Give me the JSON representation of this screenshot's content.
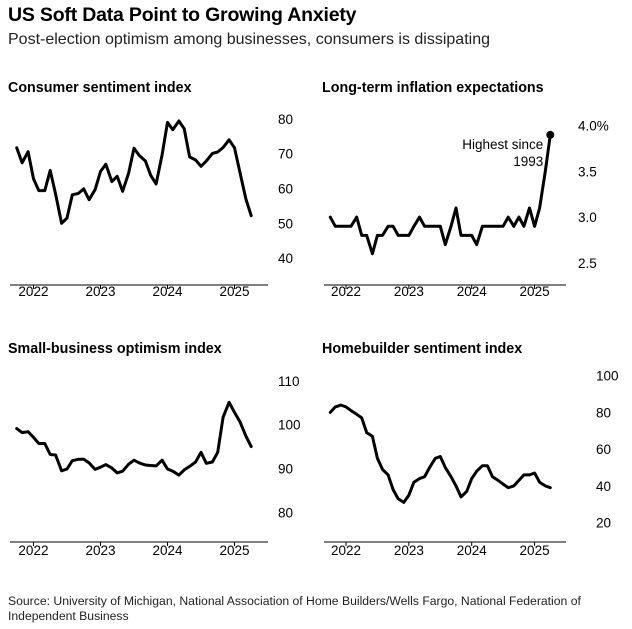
{
  "title": "US Soft Data Point to Growing Anxiety",
  "subtitle": "Post-election optimism among businesses, consumers is dissipating",
  "source": "Source: University of Michigan, National Association of Home Builders/Wells Fargo, National Federation of Independent Business",
  "colors": {
    "line": "#000000",
    "gridline": "#000000",
    "text": "#000000"
  },
  "chart_data": [
    {
      "type": "line",
      "title": "Consumer sentiment index",
      "x_ticks": [
        "2022",
        "2023",
        "2024",
        "2025"
      ],
      "x_tick_values": [
        2022,
        2023,
        2024,
        2025
      ],
      "xlim": [
        2021.65,
        2025.5
      ],
      "y_ticks": [
        40,
        50,
        60,
        70,
        80
      ],
      "y_tick_labels": [
        "40",
        "50",
        "60",
        "70",
        "80"
      ],
      "ylim": [
        36,
        82
      ],
      "series": [
        {
          "x": [
            2021.75,
            2021.83,
            2021.92,
            2022.0,
            2022.08,
            2022.17,
            2022.25,
            2022.33,
            2022.42,
            2022.5,
            2022.58,
            2022.67,
            2022.75,
            2022.83,
            2022.92,
            2023.0,
            2023.08,
            2023.17,
            2023.25,
            2023.33,
            2023.42,
            2023.5,
            2023.58,
            2023.67,
            2023.75,
            2023.83,
            2023.92,
            2024.0,
            2024.08,
            2024.17,
            2024.25,
            2024.33,
            2024.42,
            2024.5,
            2024.58,
            2024.67,
            2024.75,
            2024.83,
            2024.92,
            2025.0,
            2025.08,
            2025.17,
            2025.25
          ],
          "y": [
            71.7,
            67.4,
            70.6,
            62.8,
            59.4,
            59.4,
            65.2,
            58.4,
            50.0,
            51.5,
            58.2,
            58.6,
            59.9,
            56.8,
            59.7,
            64.9,
            67.0,
            62.0,
            63.5,
            59.2,
            64.4,
            71.6,
            69.5,
            67.9,
            63.8,
            61.3,
            69.7,
            79.0,
            76.9,
            79.4,
            77.2,
            69.1,
            68.2,
            66.4,
            67.9,
            70.1,
            70.5,
            71.8,
            74.0,
            71.7,
            64.7,
            57.0,
            52.2
          ]
        }
      ]
    },
    {
      "type": "line",
      "title": "Long-term inflation expectations",
      "x_ticks": [
        "2022",
        "2023",
        "2024",
        "2025"
      ],
      "x_tick_values": [
        2022,
        2023,
        2024,
        2025
      ],
      "xlim": [
        2021.65,
        2025.5
      ],
      "y_ticks": [
        2.5,
        3.0,
        3.5,
        4.0
      ],
      "y_tick_labels": [
        "2.5",
        "3.0",
        "3.5",
        "4.0%"
      ],
      "ylim": [
        2.4,
        4.15
      ],
      "annotation": "Highest since\n1993",
      "series": [
        {
          "x": [
            2021.75,
            2021.83,
            2021.92,
            2022.0,
            2022.08,
            2022.17,
            2022.25,
            2022.33,
            2022.42,
            2022.5,
            2022.58,
            2022.67,
            2022.75,
            2022.83,
            2022.92,
            2023.0,
            2023.08,
            2023.17,
            2023.25,
            2023.33,
            2023.42,
            2023.5,
            2023.58,
            2023.67,
            2023.75,
            2023.83,
            2023.92,
            2024.0,
            2024.08,
            2024.17,
            2024.25,
            2024.33,
            2024.42,
            2024.5,
            2024.58,
            2024.67,
            2024.75,
            2024.83,
            2024.92,
            2025.0,
            2025.08,
            2025.17,
            2025.25
          ],
          "y": [
            3.0,
            2.9,
            2.9,
            2.9,
            2.9,
            3.0,
            2.8,
            2.8,
            2.6,
            2.8,
            2.8,
            2.9,
            2.9,
            2.8,
            2.8,
            2.8,
            2.9,
            3.0,
            2.9,
            2.9,
            2.9,
            2.9,
            2.7,
            2.9,
            3.1,
            2.8,
            2.8,
            2.8,
            2.7,
            2.9,
            2.9,
            2.9,
            2.9,
            2.9,
            3.0,
            2.9,
            3.0,
            2.9,
            3.1,
            2.9,
            3.1,
            3.5,
            3.9
          ]
        }
      ]
    },
    {
      "type": "line",
      "title": "Small-business optimism index",
      "x_ticks": [
        "2022",
        "2023",
        "2024",
        "2025"
      ],
      "x_tick_values": [
        2022,
        2023,
        2024,
        2025
      ],
      "xlim": [
        2021.65,
        2025.5
      ],
      "y_ticks": [
        80,
        90,
        100,
        110
      ],
      "y_tick_labels": [
        "80",
        "90",
        "100",
        "110"
      ],
      "ylim": [
        76,
        112
      ],
      "series": [
        {
          "x": [
            2021.75,
            2021.83,
            2021.92,
            2022.0,
            2022.08,
            2022.17,
            2022.25,
            2022.33,
            2022.42,
            2022.5,
            2022.58,
            2022.67,
            2022.75,
            2022.83,
            2022.92,
            2023.0,
            2023.08,
            2023.17,
            2023.25,
            2023.33,
            2023.42,
            2023.5,
            2023.58,
            2023.67,
            2023.75,
            2023.83,
            2023.92,
            2024.0,
            2024.08,
            2024.17,
            2024.25,
            2024.33,
            2024.42,
            2024.5,
            2024.58,
            2024.67,
            2024.75,
            2024.83,
            2024.92,
            2025.0,
            2025.08,
            2025.17,
            2025.25
          ],
          "y": [
            99.1,
            98.2,
            98.4,
            97.1,
            95.7,
            95.7,
            93.2,
            93.1,
            89.5,
            89.9,
            91.8,
            92.1,
            92.1,
            91.3,
            89.8,
            90.3,
            90.9,
            90.1,
            89.0,
            89.4,
            91.0,
            91.9,
            91.3,
            90.8,
            90.7,
            90.6,
            91.9,
            89.9,
            89.4,
            88.5,
            89.7,
            90.5,
            91.5,
            93.7,
            91.2,
            91.5,
            93.7,
            101.7,
            105.1,
            102.8,
            100.7,
            97.4,
            95.0
          ]
        }
      ]
    },
    {
      "type": "line",
      "title": "Homebuilder sentiment index",
      "x_ticks": [
        "2022",
        "2023",
        "2024",
        "2025"
      ],
      "x_tick_values": [
        2022,
        2023,
        2024,
        2025
      ],
      "xlim": [
        2021.65,
        2025.5
      ],
      "y_ticks": [
        20,
        40,
        60,
        80,
        100
      ],
      "y_tick_labels": [
        "20",
        "40",
        "60",
        "80",
        "100"
      ],
      "ylim": [
        16,
        102
      ],
      "series": [
        {
          "x": [
            2021.75,
            2021.83,
            2021.92,
            2022.0,
            2022.08,
            2022.17,
            2022.25,
            2022.33,
            2022.42,
            2022.5,
            2022.58,
            2022.67,
            2022.75,
            2022.83,
            2022.92,
            2023.0,
            2023.08,
            2023.17,
            2023.25,
            2023.33,
            2023.42,
            2023.5,
            2023.58,
            2023.67,
            2023.75,
            2023.83,
            2023.92,
            2024.0,
            2024.08,
            2024.17,
            2024.25,
            2024.33,
            2024.42,
            2024.5,
            2024.58,
            2024.67,
            2024.75,
            2024.83,
            2024.92,
            2025.0,
            2025.08,
            2025.17,
            2025.25
          ],
          "y": [
            80,
            83,
            84,
            83,
            81,
            79,
            77,
            69,
            67,
            55,
            49,
            46,
            38,
            33,
            31,
            35,
            42,
            44,
            45,
            50,
            55,
            56,
            50,
            45,
            40,
            34,
            37,
            44,
            48,
            51,
            51,
            45,
            43,
            41,
            39,
            40,
            43,
            46,
            46,
            47,
            42,
            40,
            39
          ]
        }
      ]
    }
  ]
}
